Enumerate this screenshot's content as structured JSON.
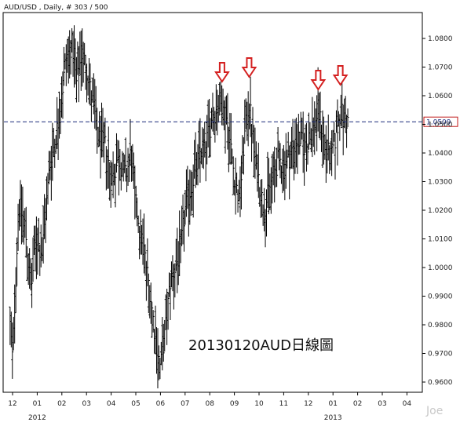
{
  "header": {
    "title": "AUD/USD , Daily, # 303 / 500"
  },
  "caption": "20130120AUD日線圖",
  "watermark": "Joe",
  "colors": {
    "bar": "#000000",
    "dashed_line": "#1a2a7a",
    "arrow": "#d42020",
    "price_box_border": "#c01818",
    "price_box_text": "#1a2a7a"
  },
  "chart_data": {
    "type": "ohlc",
    "symbol": "AUD/USD",
    "timeframe": "Daily",
    "ylim": [
      0.956,
      1.087
    ],
    "y_ticks": [
      "1.0800",
      "1.0700",
      "1.0600",
      "1.0500",
      "1.0400",
      "1.0300",
      "1.0200",
      "1.0100",
      "1.0000",
      "0.9900",
      "0.9800",
      "0.9700",
      "0.9600"
    ],
    "x_ticks": [
      "12",
      "01",
      "02",
      "03",
      "04",
      "05",
      "06",
      "07",
      "08",
      "09",
      "10",
      "11",
      "12",
      "01",
      "02",
      "03",
      "04"
    ],
    "year_labels": [
      {
        "label": "2012",
        "at_tick": 1
      },
      {
        "label": "2013",
        "at_tick": 13
      }
    ],
    "reference_line": {
      "value": 1.0509,
      "label": "1.0509",
      "style": "dashed"
    },
    "annotations": [
      {
        "type": "down-arrow",
        "month_pos": 8.5
      },
      {
        "type": "down-arrow",
        "month_pos": 9.6
      },
      {
        "type": "down-arrow",
        "month_pos": 12.4
      },
      {
        "type": "down-arrow",
        "month_pos": 13.3
      }
    ],
    "close_path": [
      [
        -0.1,
        0.98
      ],
      [
        0.0,
        0.968
      ],
      [
        0.25,
        1.022
      ],
      [
        0.5,
        1.015
      ],
      [
        0.75,
        0.992
      ],
      [
        0.95,
        1.01
      ],
      [
        1.2,
        1.005
      ],
      [
        1.5,
        1.035
      ],
      [
        1.8,
        1.048
      ],
      [
        2.0,
        1.06
      ],
      [
        2.15,
        1.072
      ],
      [
        2.4,
        1.078
      ],
      [
        2.6,
        1.064
      ],
      [
        2.8,
        1.075
      ],
      [
        3.0,
        1.07
      ],
      [
        3.2,
        1.06
      ],
      [
        3.5,
        1.045
      ],
      [
        3.8,
        1.042
      ],
      [
        4.0,
        1.03
      ],
      [
        4.3,
        1.038
      ],
      [
        4.6,
        1.032
      ],
      [
        4.8,
        1.04
      ],
      [
        5.0,
        1.022
      ],
      [
        5.3,
        1.008
      ],
      [
        5.6,
        0.99
      ],
      [
        5.8,
        0.975
      ],
      [
        6.0,
        0.965
      ],
      [
        6.2,
        0.978
      ],
      [
        6.4,
        0.995
      ],
      [
        6.8,
        1.005
      ],
      [
        7.0,
        1.02
      ],
      [
        7.3,
        1.03
      ],
      [
        7.6,
        1.04
      ],
      [
        7.9,
        1.045
      ],
      [
        8.1,
        1.052
      ],
      [
        8.4,
        1.058
      ],
      [
        8.7,
        1.052
      ],
      [
        9.0,
        1.032
      ],
      [
        9.2,
        1.022
      ],
      [
        9.4,
        1.045
      ],
      [
        9.6,
        1.058
      ],
      [
        9.8,
        1.04
      ],
      [
        10.0,
        1.03
      ],
      [
        10.2,
        1.02
      ],
      [
        10.5,
        1.03
      ],
      [
        10.8,
        1.038
      ],
      [
        11.0,
        1.035
      ],
      [
        11.3,
        1.04
      ],
      [
        11.6,
        1.045
      ],
      [
        11.9,
        1.042
      ],
      [
        12.2,
        1.048
      ],
      [
        12.4,
        1.055
      ],
      [
        12.7,
        1.042
      ],
      [
        12.9,
        1.038
      ],
      [
        13.1,
        1.045
      ],
      [
        13.3,
        1.055
      ],
      [
        13.45,
        1.052
      ],
      [
        13.6,
        1.051
      ]
    ]
  }
}
